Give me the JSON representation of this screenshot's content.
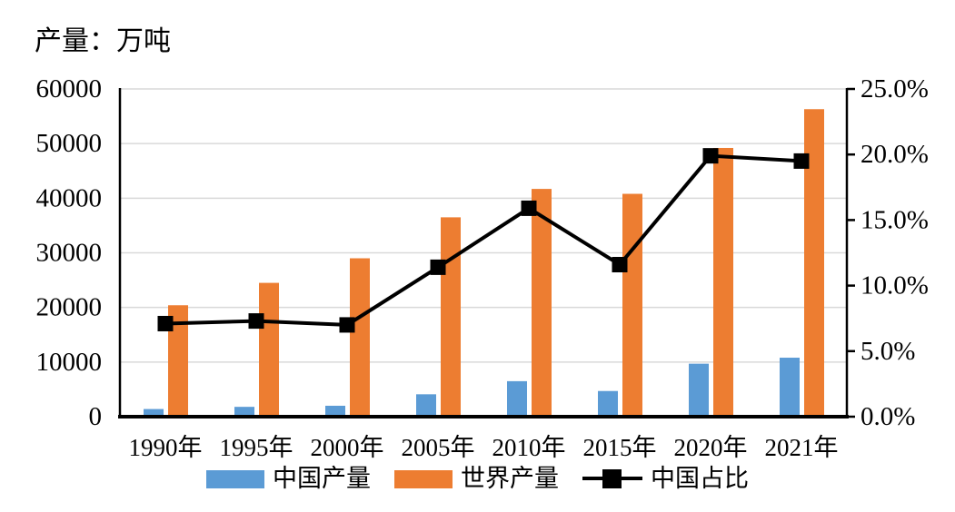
{
  "title": "产量：万吨",
  "chart_data": {
    "type": "combo",
    "categories": [
      "1990年",
      "1995年",
      "2000年",
      "2005年",
      "2010年",
      "2015年",
      "2020年",
      "2021年"
    ],
    "series": [
      {
        "name": "中国产量",
        "type": "bar",
        "axis": "left",
        "color": "#5B9BD5",
        "values": [
          1400,
          1800,
          2000,
          4100,
          6500,
          4700,
          9700,
          10800
        ]
      },
      {
        "name": "世界产量",
        "type": "bar",
        "axis": "left",
        "color": "#ED7D31",
        "values": [
          20400,
          24500,
          29000,
          36500,
          41700,
          40800,
          49200,
          56300
        ]
      },
      {
        "name": "中国占比",
        "type": "line",
        "axis": "right",
        "color": "#000000",
        "marker": "square",
        "values": [
          7.1,
          7.3,
          7.0,
          11.4,
          15.9,
          11.6,
          19.9,
          19.5
        ]
      }
    ],
    "left_axis": {
      "label": "产量：万吨",
      "min": 0,
      "max": 60000,
      "step": 10000,
      "tick_labels": [
        "0",
        "10000",
        "20000",
        "30000",
        "40000",
        "50000",
        "60000"
      ]
    },
    "right_axis": {
      "min": 0,
      "max": 25,
      "step": 5,
      "tick_labels": [
        "0.0%",
        "5.0%",
        "10.0%",
        "15.0%",
        "20.0%",
        "25.0%"
      ]
    },
    "grid": true,
    "legend_position": "bottom"
  },
  "colors": {
    "china_bar": "#5B9BD5",
    "world_bar": "#ED7D31",
    "share_line": "#000000",
    "gridline": "#D9D9D9",
    "axis": "#000000",
    "background": "#FFFFFF"
  }
}
